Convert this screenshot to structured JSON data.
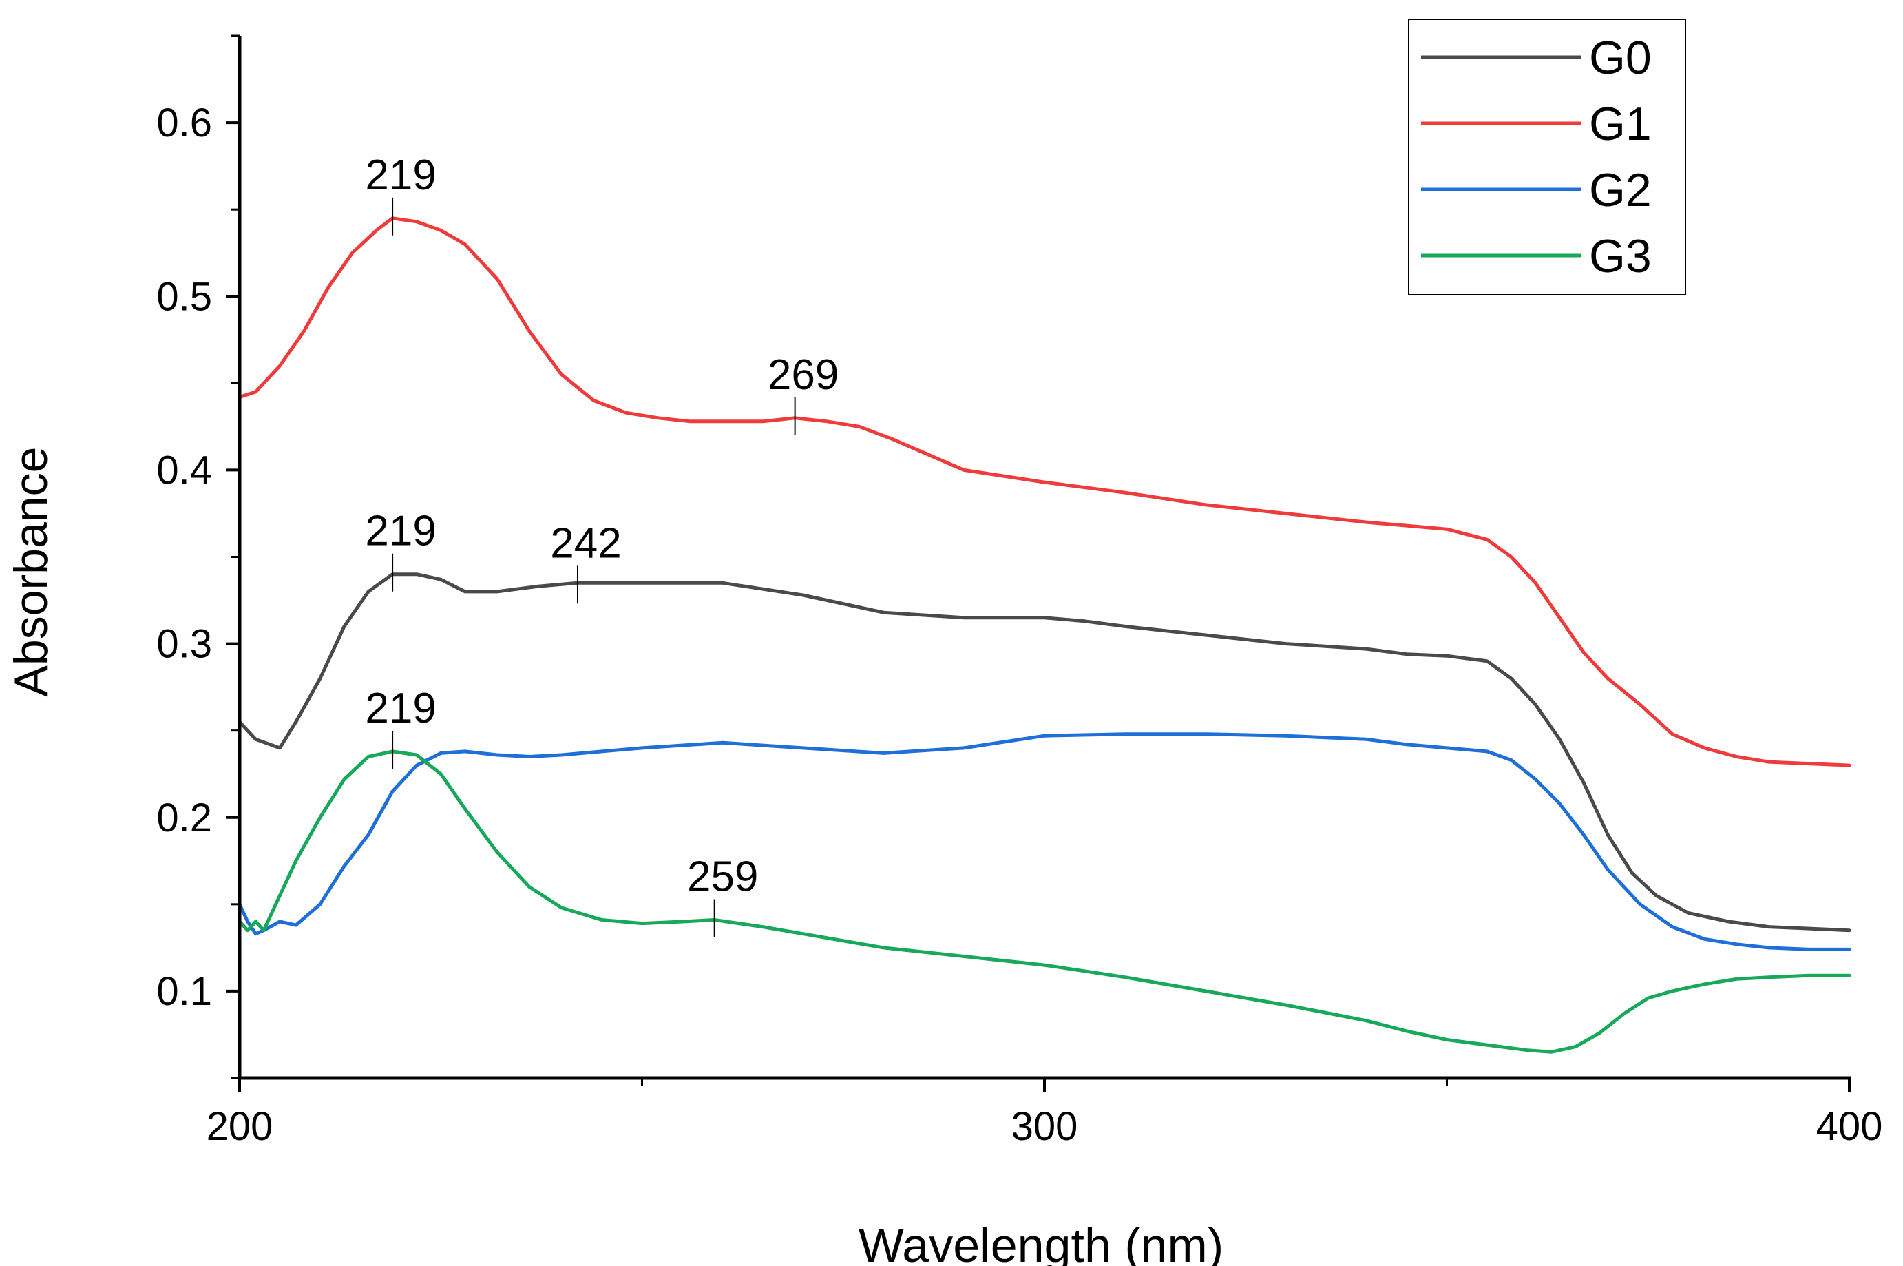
{
  "chart_data": {
    "type": "line",
    "title": "",
    "xlabel": "Wavelength (nm)",
    "ylabel": "Absorbance",
    "xlim": [
      200,
      400
    ],
    "ylim": [
      0.05,
      0.65
    ],
    "xticks": [
      200,
      300,
      400
    ],
    "xtick_labels": [
      "200",
      "300",
      "400"
    ],
    "yticks": [
      0.1,
      0.2,
      0.3,
      0.4,
      0.5,
      0.6
    ],
    "ytick_labels": [
      "0.1",
      "0.2",
      "0.3",
      "0.4",
      "0.5",
      "0.6"
    ],
    "legend_position": "top-right",
    "series": [
      {
        "name": "G0",
        "color": "#4a4a4a",
        "x": [
          200,
          202,
          205,
          207,
          210,
          213,
          216,
          219,
          222,
          225,
          228,
          232,
          237,
          242,
          250,
          260,
          270,
          280,
          290,
          300,
          305,
          310,
          320,
          330,
          340,
          345,
          350,
          355,
          358,
          361,
          364,
          367,
          370,
          373,
          376,
          380,
          385,
          390,
          395,
          400
        ],
        "y": [
          0.255,
          0.245,
          0.24,
          0.255,
          0.28,
          0.31,
          0.33,
          0.34,
          0.34,
          0.337,
          0.33,
          0.33,
          0.333,
          0.335,
          0.335,
          0.335,
          0.328,
          0.318,
          0.315,
          0.315,
          0.313,
          0.31,
          0.305,
          0.3,
          0.297,
          0.294,
          0.293,
          0.29,
          0.28,
          0.265,
          0.245,
          0.22,
          0.19,
          0.168,
          0.155,
          0.145,
          0.14,
          0.137,
          0.136,
          0.135
        ]
      },
      {
        "name": "G1",
        "color": "#ee3b3b",
        "x": [
          200,
          202,
          205,
          208,
          211,
          214,
          217,
          219,
          222,
          225,
          228,
          232,
          236,
          240,
          244,
          248,
          252,
          256,
          260,
          265,
          269,
          273,
          277,
          281,
          285,
          290,
          300,
          310,
          320,
          330,
          340,
          345,
          350,
          355,
          358,
          361,
          364,
          367,
          370,
          374,
          378,
          382,
          386,
          390,
          395,
          400
        ],
        "y": [
          0.442,
          0.445,
          0.46,
          0.48,
          0.505,
          0.525,
          0.538,
          0.545,
          0.543,
          0.538,
          0.53,
          0.51,
          0.48,
          0.455,
          0.44,
          0.433,
          0.43,
          0.428,
          0.428,
          0.428,
          0.43,
          0.428,
          0.425,
          0.418,
          0.41,
          0.4,
          0.393,
          0.387,
          0.38,
          0.375,
          0.37,
          0.368,
          0.366,
          0.36,
          0.35,
          0.335,
          0.315,
          0.295,
          0.28,
          0.265,
          0.248,
          0.24,
          0.235,
          0.232,
          0.231,
          0.23
        ]
      },
      {
        "name": "G2",
        "color": "#1e6fd8",
        "x": [
          200,
          201,
          202,
          203,
          205,
          207,
          210,
          213,
          216,
          219,
          222,
          225,
          228,
          232,
          236,
          240,
          245,
          250,
          260,
          270,
          280,
          290,
          300,
          310,
          320,
          330,
          340,
          345,
          350,
          355,
          358,
          361,
          364,
          367,
          370,
          374,
          378,
          382,
          386,
          390,
          395,
          400
        ],
        "y": [
          0.15,
          0.14,
          0.133,
          0.135,
          0.14,
          0.138,
          0.15,
          0.172,
          0.19,
          0.215,
          0.23,
          0.237,
          0.238,
          0.236,
          0.235,
          0.236,
          0.238,
          0.24,
          0.243,
          0.24,
          0.237,
          0.24,
          0.247,
          0.248,
          0.248,
          0.247,
          0.245,
          0.242,
          0.24,
          0.238,
          0.233,
          0.222,
          0.208,
          0.19,
          0.17,
          0.15,
          0.137,
          0.13,
          0.127,
          0.125,
          0.124,
          0.124
        ]
      },
      {
        "name": "G3",
        "color": "#17a85a",
        "x": [
          200,
          201,
          202,
          203,
          205,
          207,
          210,
          213,
          216,
          219,
          222,
          225,
          228,
          232,
          236,
          240,
          245,
          250,
          255,
          259,
          265,
          270,
          280,
          290,
          300,
          310,
          320,
          330,
          340,
          345,
          350,
          355,
          360,
          363,
          366,
          369,
          372,
          375,
          378,
          382,
          386,
          390,
          395,
          400
        ],
        "y": [
          0.14,
          0.135,
          0.14,
          0.135,
          0.155,
          0.175,
          0.2,
          0.222,
          0.235,
          0.238,
          0.236,
          0.225,
          0.205,
          0.18,
          0.16,
          0.148,
          0.141,
          0.139,
          0.14,
          0.141,
          0.137,
          0.133,
          0.125,
          0.12,
          0.115,
          0.108,
          0.1,
          0.092,
          0.083,
          0.077,
          0.072,
          0.069,
          0.066,
          0.065,
          0.068,
          0.076,
          0.087,
          0.096,
          0.1,
          0.104,
          0.107,
          0.108,
          0.109,
          0.109
        ]
      }
    ],
    "annotations": [
      {
        "text": "219",
        "series": "G1",
        "x": 219,
        "y": 0.545
      },
      {
        "text": "269",
        "series": "G1",
        "x": 269,
        "y": 0.43
      },
      {
        "text": "219",
        "series": "G0",
        "x": 219,
        "y": 0.34
      },
      {
        "text": "242",
        "series": "G0",
        "x": 242,
        "y": 0.333
      },
      {
        "text": "219",
        "series": "G3",
        "x": 219,
        "y": 0.238
      },
      {
        "text": "259",
        "series": "G3",
        "x": 259,
        "y": 0.141
      }
    ]
  }
}
